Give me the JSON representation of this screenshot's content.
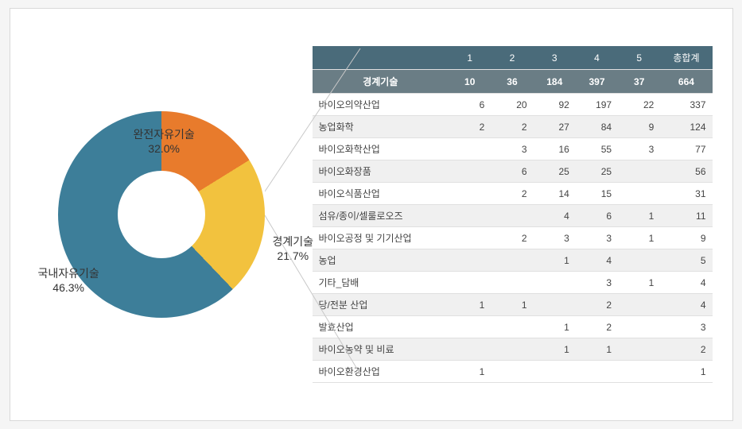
{
  "chart": {
    "type": "donut",
    "background_color": "#ffffff",
    "border_color": "#d8d8d8",
    "hole_color": "#ffffff",
    "slices": [
      {
        "label": "완전자유기술",
        "value": 32.0,
        "percent": "32.0%",
        "color": "#e87b2c"
      },
      {
        "label": "경계기술",
        "value": 21.7,
        "percent": "21.7%",
        "color": "#f2c23e"
      },
      {
        "label": "국내자유기술",
        "value": 46.3,
        "percent": "46.3%",
        "color": "#3d7e99"
      }
    ],
    "label_fontsize": 14,
    "label_color": "#333333"
  },
  "table": {
    "header_bg": "#4a6b7a",
    "subheader_bg": "#6a7d85",
    "header_color": "#ffffff",
    "row_alt_bg": "#f0f0f0",
    "border_color": "#e0e0e0",
    "columns": [
      "",
      "1",
      "2",
      "3",
      "4",
      "5",
      "총합계"
    ],
    "summary_row": {
      "label": "경계기술",
      "values": [
        "10",
        "36",
        "184",
        "397",
        "37",
        "664"
      ]
    },
    "rows": [
      {
        "label": "바이오의약산업",
        "values": [
          "6",
          "20",
          "92",
          "197",
          "22",
          "337"
        ]
      },
      {
        "label": "농업화학",
        "values": [
          "2",
          "2",
          "27",
          "84",
          "9",
          "124"
        ]
      },
      {
        "label": "바이오화학산업",
        "values": [
          "",
          "3",
          "16",
          "55",
          "3",
          "77"
        ]
      },
      {
        "label": "바이오화장품",
        "values": [
          "",
          "6",
          "25",
          "25",
          "",
          "56"
        ]
      },
      {
        "label": "바이오식품산업",
        "values": [
          "",
          "2",
          "14",
          "15",
          "",
          "31"
        ]
      },
      {
        "label": "섬유/종이/셀룰로오즈",
        "values": [
          "",
          "",
          "4",
          "6",
          "1",
          "11"
        ]
      },
      {
        "label": "바이오공정 및 기기산업",
        "values": [
          "",
          "2",
          "3",
          "3",
          "1",
          "9"
        ]
      },
      {
        "label": "농업",
        "values": [
          "",
          "",
          "1",
          "4",
          "",
          "5"
        ]
      },
      {
        "label": "기타_담배",
        "values": [
          "",
          "",
          "",
          "3",
          "1",
          "4"
        ]
      },
      {
        "label": "당/전분 산업",
        "values": [
          "1",
          "1",
          "",
          "2",
          "",
          "4"
        ]
      },
      {
        "label": "발효산업",
        "values": [
          "",
          "",
          "1",
          "2",
          "",
          "3"
        ]
      },
      {
        "label": "바이오농약 및 비료",
        "values": [
          "",
          "",
          "1",
          "1",
          "",
          "2"
        ]
      },
      {
        "label": "바이오환경산업",
        "values": [
          "1",
          "",
          "",
          "",
          "",
          "1"
        ]
      }
    ]
  }
}
